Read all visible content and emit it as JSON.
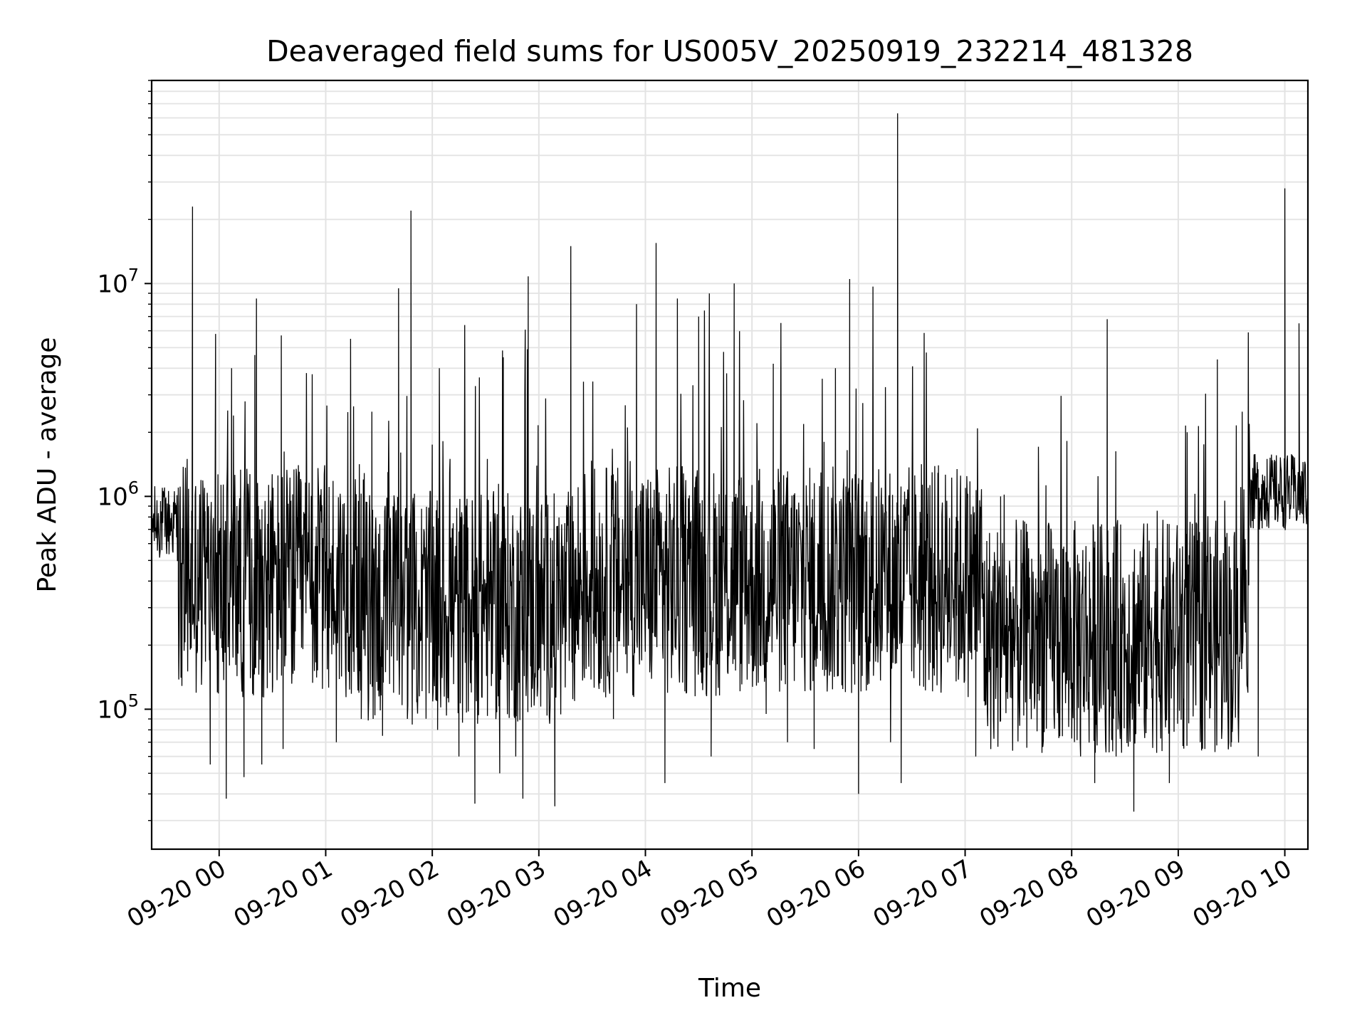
{
  "chart_data": {
    "type": "line",
    "title": "Deaveraged field sums for US005V_20250919_232214_481328",
    "xlabel": "Time",
    "ylabel": "Peak ADU - average",
    "y_scale": "log",
    "ylim": [
      22000,
      90000000
    ],
    "xlim": [
      "2025-09-19 23:22",
      "2025-09-20 10:13"
    ],
    "grid": true,
    "line_color": "#000000",
    "x_ticks": [
      {
        "label": "09-20 00",
        "value": "2025-09-20 00:00"
      },
      {
        "label": "09-20 01",
        "value": "2025-09-20 01:00"
      },
      {
        "label": "09-20 02",
        "value": "2025-09-20 02:00"
      },
      {
        "label": "09-20 03",
        "value": "2025-09-20 03:00"
      },
      {
        "label": "09-20 04",
        "value": "2025-09-20 04:00"
      },
      {
        "label": "09-20 05",
        "value": "2025-09-20 05:00"
      },
      {
        "label": "09-20 06",
        "value": "2025-09-20 06:00"
      },
      {
        "label": "09-20 07",
        "value": "2025-09-20 07:00"
      },
      {
        "label": "09-20 08",
        "value": "2025-09-20 08:00"
      },
      {
        "label": "09-20 09",
        "value": "2025-09-20 09:00"
      },
      {
        "label": "09-20 10",
        "value": "2025-09-20 10:00"
      }
    ],
    "y_ticks": [
      {
        "base": "10",
        "exp": "5",
        "value": 100000
      },
      {
        "base": "10",
        "exp": "6",
        "value": 1000000
      },
      {
        "base": "10",
        "exp": "7",
        "value": 10000000
      }
    ],
    "series": [
      {
        "x": [
          "2025-09-19 23:22",
          "2025-09-19 23:27",
          "2025-09-19 23:32",
          "2025-09-19 23:37",
          "2025-09-19 23:42",
          "2025-09-19 23:45",
          "2025-09-19 23:48",
          "2025-09-19 23:52",
          "2025-09-19 23:54",
          "2025-09-19 23:55",
          "2025-09-19 23:58",
          "2025-09-19 23:59",
          "2025-09-20 00:04",
          "2025-09-20 00:07",
          "2025-09-20 00:10",
          "2025-09-20 00:14",
          "2025-09-20 00:17",
          "2025-09-20 00:20",
          "2025-09-20 00:21",
          "2025-09-20 00:24",
          "2025-09-20 00:27",
          "2025-09-20 00:30",
          "2025-09-20 00:35",
          "2025-09-20 00:36",
          "2025-09-20 00:44",
          "2025-09-20 00:52",
          "2025-09-20 01:00",
          "2025-09-20 01:06",
          "2025-09-20 01:09",
          "2025-09-20 01:14",
          "2025-09-20 01:20",
          "2025-09-20 01:26",
          "2025-09-20 01:32",
          "2025-09-20 01:35",
          "2025-09-20 01:41",
          "2025-09-20 01:47",
          "2025-09-20 01:48",
          "2025-09-20 01:53",
          "2025-09-20 02:00",
          "2025-09-20 02:03",
          "2025-09-20 02:10",
          "2025-09-20 02:15",
          "2025-09-20 02:22",
          "2025-09-20 02:24",
          "2025-09-20 02:31",
          "2025-09-20 02:38",
          "2025-09-20 02:40",
          "2025-09-20 02:47",
          "2025-09-20 02:51",
          "2025-09-20 02:54",
          "2025-09-20 03:00",
          "2025-09-20 03:09",
          "2025-09-20 03:18",
          "2025-09-20 03:30",
          "2025-09-20 03:42",
          "2025-09-20 03:55",
          "2025-09-20 04:06",
          "2025-09-20 04:11",
          "2025-09-20 04:18",
          "2025-09-20 04:30",
          "2025-09-20 04:37",
          "2025-09-20 04:50",
          "2025-09-20 04:57",
          "2025-09-20 05:08",
          "2025-09-20 05:12",
          "2025-09-20 05:20",
          "2025-09-20 05:35",
          "2025-09-20 05:47",
          "2025-09-20 05:55",
          "2025-09-20 06:00",
          "2025-09-20 06:10",
          "2025-09-20 06:18",
          "2025-09-20 06:22",
          "2025-09-20 06:24",
          "2025-09-20 06:35",
          "2025-09-20 06:45",
          "2025-09-20 06:55",
          "2025-09-20 07:06",
          "2025-09-20 07:20",
          "2025-09-20 07:35",
          "2025-09-20 07:50",
          "2025-09-20 08:05",
          "2025-09-20 08:13",
          "2025-09-20 08:20",
          "2025-09-20 08:25",
          "2025-09-20 08:35",
          "2025-09-20 08:45",
          "2025-09-20 08:55",
          "2025-09-20 09:05",
          "2025-09-20 09:15",
          "2025-09-20 09:22",
          "2025-09-20 09:30",
          "2025-09-20 09:36",
          "2025-09-20 09:41",
          "2025-09-20 09:45",
          "2025-09-20 09:50",
          "2025-09-20 09:55",
          "2025-09-20 10:00",
          "2025-09-20 10:05",
          "2025-09-20 10:08",
          "2025-09-20 10:13"
        ],
        "y": [
          450000,
          950000,
          650000,
          1100000,
          1500000,
          23000000,
          700000,
          250000,
          900000,
          55000,
          5800000,
          120000,
          38000,
          4000000,
          900000,
          48000,
          250000,
          180000,
          8500000,
          55000,
          500000,
          120000,
          5700000,
          65000,
          800000,
          250000,
          550000,
          70000,
          400000,
          5500000,
          90000,
          2500000,
          75000,
          1300000,
          9500000,
          200000,
          22000000,
          250000,
          800000,
          80000,
          1500000,
          60000,
          120000,
          36000,
          1500000,
          50000,
          4500000,
          60000,
          38000,
          10800000,
          500000,
          35000,
          15000000,
          600000,
          90000,
          8000000,
          15500000,
          45000,
          8500000,
          7000000,
          60000,
          10000000,
          900000,
          95000,
          4200000,
          70000,
          65000,
          4000000,
          10500000,
          40000,
          1000000,
          70000,
          63000000,
          45000,
          750000,
          1400000,
          800000,
          60000,
          1000000,
          500000,
          120000,
          60000,
          45000,
          6800000,
          60000,
          33000,
          300000,
          45000,
          2000000,
          65000,
          4400000,
          70000,
          2500000,
          1200000,
          60000,
          1500000,
          900000,
          28000000,
          1000000,
          6500000,
          700000
        ]
      }
    ]
  }
}
